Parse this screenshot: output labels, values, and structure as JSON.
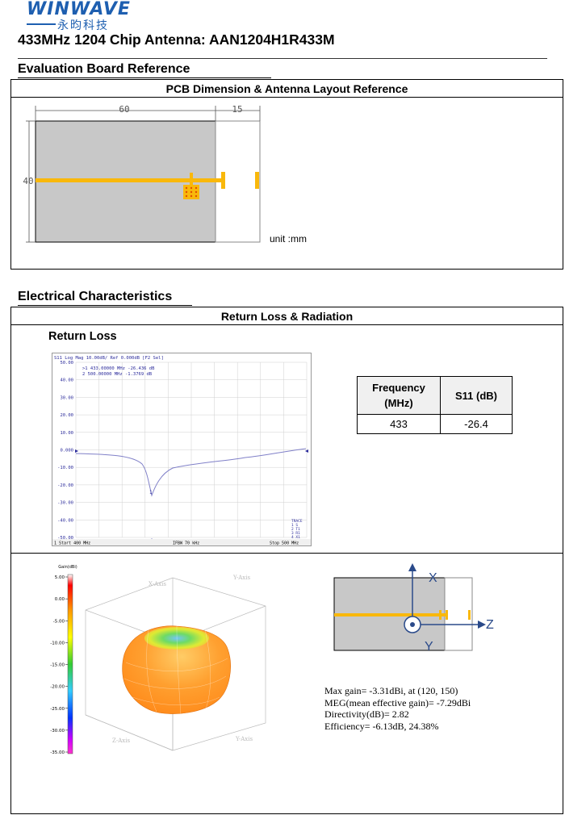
{
  "header": {
    "logo_text": "WINWAVE",
    "logo_cn": "永昀科技",
    "title": "433MHz 1204 Chip Antenna: AAN1204H1R433M"
  },
  "section1": {
    "title": "Evaluation Board Reference",
    "box_title": "PCB Dimension & Antenna Layout Reference",
    "dim_width": "60",
    "dim_clearance": "15",
    "dim_height": "40",
    "unit": "unit :mm"
  },
  "section2": {
    "title": "Electrical Characteristics",
    "box_title": "Return Loss & Radiation",
    "return_loss_title": "Return Loss",
    "vna": {
      "header": "S11 Log Mag 10.00dB/ Ref 0.000dB [F2 Sel]",
      "marker1": ">1   433.00000 MHz  -26.436 dB",
      "marker2": " 2   500.00000 MHz  -1.3769 dB",
      "start": "1  Start 400 MHz",
      "ifbw": "IFBW 70 kHz",
      "stop": "Stop 500 MHz",
      "y_ticks": [
        "50.00",
        "40.00",
        "30.00",
        "20.00",
        "10.00",
        "0.000",
        "-10.00",
        "-20.00",
        "-30.00",
        "-40.00",
        "-50.00"
      ]
    },
    "table": {
      "headers": [
        "Frequency (MHz)",
        "S11 (dB)"
      ],
      "rows": [
        [
          "433",
          "-26.4"
        ]
      ]
    },
    "radiation": {
      "scale_title": "Gain(dBi)",
      "scale_ticks": [
        "5.00",
        "0.00",
        "-5.00",
        "-10.00",
        "-15.00",
        "-20.00",
        "-25.00",
        "-30.00",
        "-35.00"
      ],
      "axis_x": "X",
      "axis_y": "Y",
      "axis_z": "Z",
      "cube_labels": [
        "X-Axis",
        "Y-Axis",
        "Z-Axis",
        "Y-Axis"
      ],
      "stats": [
        "Max gain= -3.31dBi, at (120, 150)",
        "MEG(mean effective gain)= -7.29dBi",
        "Directivity(dB)= 2.82",
        "Efficiency= -6.13dB, 24.38%"
      ]
    }
  },
  "colors": {
    "board": "#c8c8c8",
    "antenna_trace": "#f9b80b",
    "vna_trace": "#8080c8",
    "axis_arrow": "#2a4a8a"
  }
}
